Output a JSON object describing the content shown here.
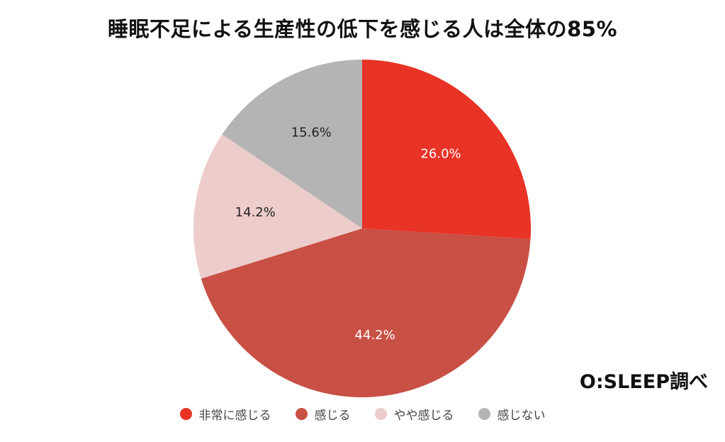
{
  "chart_data": {
    "type": "pie",
    "title": "睡眠不足による生産性の低下を感じる人は全体の85%",
    "categories": [
      "非常に感じる",
      "感じる",
      "やや感じる",
      "感じない"
    ],
    "values": [
      26.0,
      44.2,
      14.2,
      15.6
    ],
    "data_labels": [
      "26.0%",
      "44.2%",
      "14.2%",
      "15.6%"
    ],
    "colors": [
      "#e83326",
      "#c85044",
      "#edcdcc",
      "#b4b4b4"
    ],
    "label_colors": [
      "#ffffff",
      "#ffffff",
      "#222222",
      "#222222"
    ],
    "legend_position": "bottom",
    "start_angle": "12-o'clock",
    "direction": "clockwise"
  },
  "credit": "O:SLEEP調べ"
}
